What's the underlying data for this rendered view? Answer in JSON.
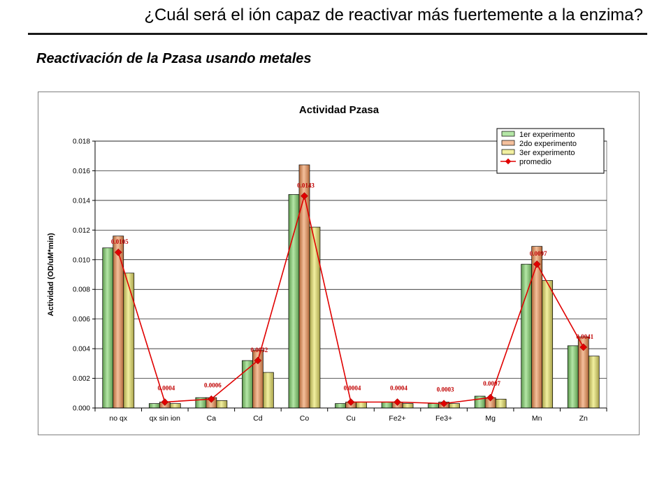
{
  "slide": {
    "title": "¿Cuál será el ión capaz de reactivar más fuertemente a la enzima?",
    "subtitle": "Reactivación de la Pzasa usando metales"
  },
  "chart_data": {
    "type": "bar",
    "title": "Actividad Pzasa",
    "xlabel": "",
    "ylabel": "Actividad (OD/uM*min)",
    "ylim": [
      0,
      0.018
    ],
    "yticks": [
      0.0,
      0.002,
      0.004,
      0.006,
      0.008,
      0.01,
      0.012,
      0.014,
      0.016,
      0.018
    ],
    "ytick_labels": [
      "0.000",
      "0.002",
      "0.004",
      "0.006",
      "0.008",
      "0.010",
      "0.012",
      "0.014",
      "0.016",
      "0.018"
    ],
    "grid": true,
    "legend_position": "top-right",
    "categories": [
      "no qx",
      "qx sin ion",
      "Ca",
      "Cd",
      "Co",
      "Cu",
      "Fe2+",
      "Fe3+",
      "Mg",
      "Mn",
      "Zn"
    ],
    "series": [
      {
        "name": "1er experimento",
        "kind": "bar",
        "color": "#b4e6a6",
        "color_dark": "#5e9a4e",
        "values": [
          0.0108,
          0.0003,
          0.0007,
          0.0032,
          0.0144,
          0.0003,
          0.0004,
          0.0003,
          0.0008,
          0.0097,
          0.0042
        ]
      },
      {
        "name": "2do experimento",
        "kind": "bar",
        "color": "#f4c09c",
        "color_dark": "#b4693a",
        "values": [
          0.0116,
          0.0004,
          0.0007,
          0.0039,
          0.0164,
          0.0004,
          0.0004,
          0.0004,
          0.0007,
          0.0109,
          0.0048
        ]
      },
      {
        "name": "3er experimento",
        "kind": "bar",
        "color": "#f2f0a0",
        "color_dark": "#a8a24a",
        "values": [
          0.0091,
          0.0003,
          0.0005,
          0.0024,
          0.0122,
          0.0004,
          0.0003,
          0.0003,
          0.0006,
          0.0086,
          0.0035
        ]
      },
      {
        "name": "promedio",
        "kind": "line",
        "color": "#e00000",
        "values": [
          0.0105,
          0.0004,
          0.0006,
          0.0032,
          0.0143,
          0.0004,
          0.0004,
          0.0003,
          0.0007,
          0.0097,
          0.0041
        ],
        "labels": [
          "0.0105",
          "0.0004",
          "0.0006",
          "0.0032",
          "0.0143",
          "0.0004",
          "0.0004",
          "0.0003",
          "0.0007",
          "0.0097",
          "0.0041"
        ]
      }
    ]
  }
}
